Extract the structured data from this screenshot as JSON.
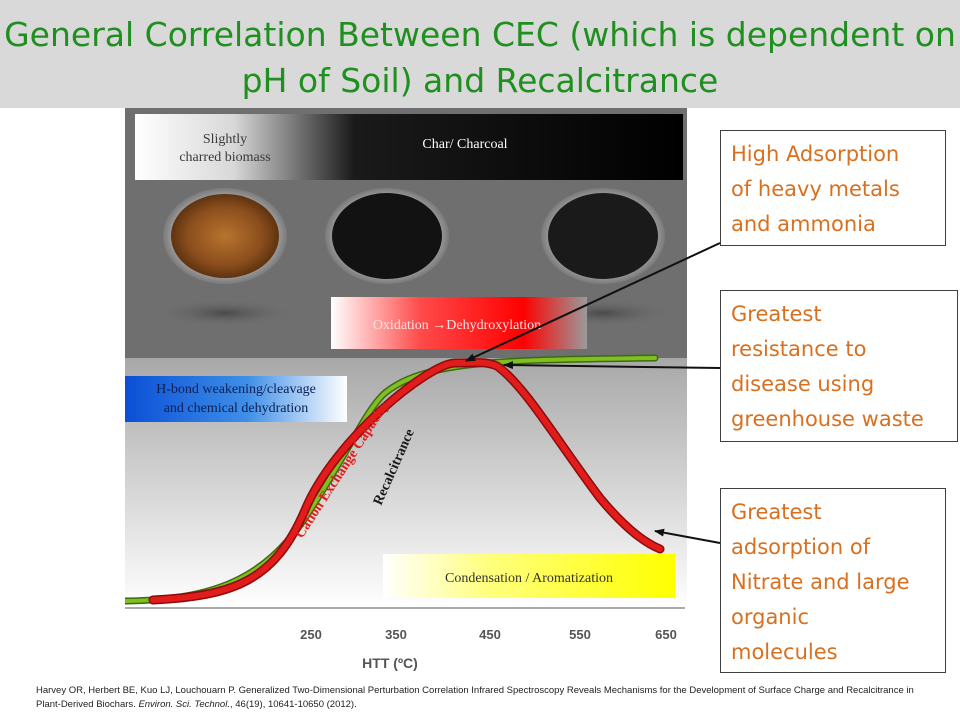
{
  "title": "General Correlation Between CEC (which is dependent on pH of Soil) and Recalcitrance",
  "figure": {
    "top_band": {
      "left_label": "Slightly\ncharred biomass",
      "left_label_1": "Slightly",
      "left_label_2": "charred biomass",
      "right_label": "Char/ Charcoal"
    },
    "oxidation_label": "Oxidation →Dehydroxylation",
    "hbond_label_1": "H-bond weakening/cleavage",
    "hbond_label_2": "and chemical  dehydration",
    "condensation_label": "Condensation   / Aromatization",
    "cec_curve_label": "Cation Exchange Capacity",
    "recalcitrance_curve_label": "Recalcitrance",
    "x_axis": {
      "title": "HTT (ºC)",
      "ticks": [
        "250",
        "350",
        "450",
        "550",
        "650"
      ]
    },
    "colors": {
      "cec": "#e21b1b",
      "recalcitrance": "#7fbf1f",
      "background": "#6f6f6f"
    }
  },
  "callouts": [
    {
      "text": "High Adsorption of heavy metals and ammonia",
      "lines": [
        "High Adsorption",
        "of heavy metals",
        "and ammonia"
      ]
    },
    {
      "text": "Greatest resistance to disease using greenhouse waste",
      "lines": [
        "Greatest",
        "resistance to",
        "disease using",
        "greenhouse waste"
      ]
    },
    {
      "text": "Greatest adsorption of Nitrate and large organic molecules",
      "lines": [
        "Greatest",
        "adsorption of",
        "Nitrate and large",
        "organic",
        "molecules"
      ]
    }
  ],
  "citation": {
    "part1": "Harvey OR, Herbert BE, Kuo LJ, Louchouarn P. Generalized Two-Dimensional Perturbation Correlation Infrared Spectroscopy Reveals Mechanisms for the Development of Surface Charge and Recalcitrance in Plant-Derived Biochars. ",
    "journal": "Environ. Sci. Technol.",
    "part2": ", 46(19), 10641-10650 (2012)."
  }
}
